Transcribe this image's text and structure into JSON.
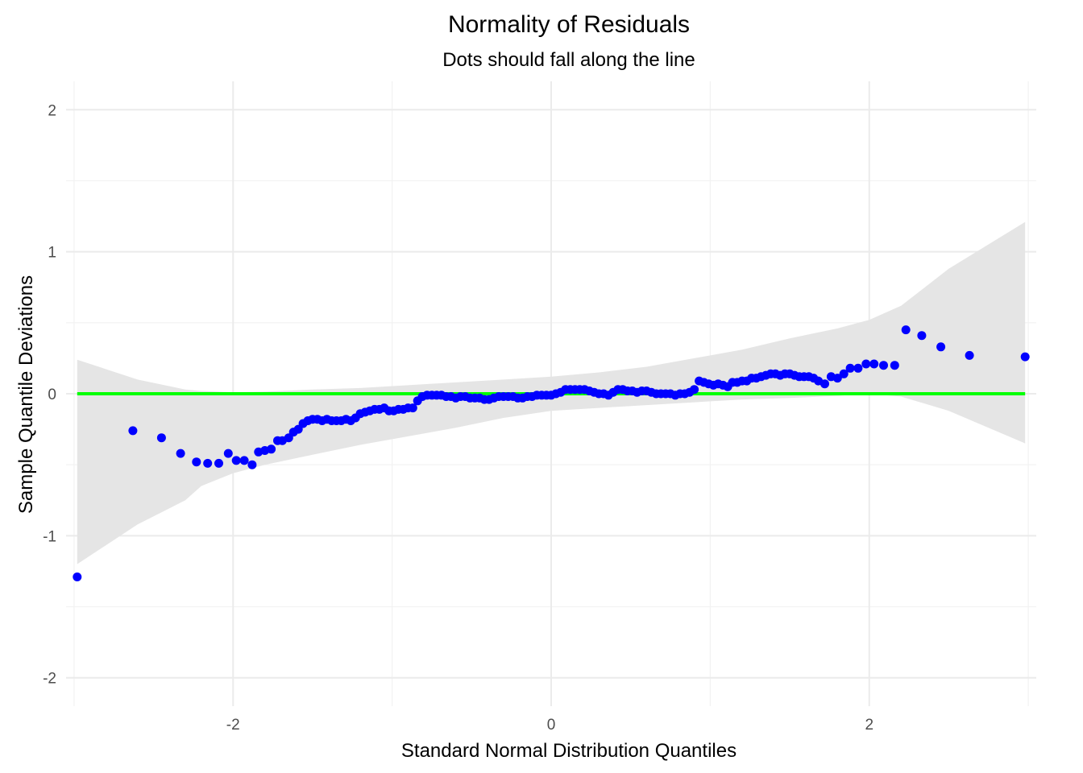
{
  "chart_data": {
    "type": "scatter",
    "title": "Normality of Residuals",
    "subtitle": "Dots should fall along the line",
    "xlabel": "Standard Normal Distribution Quantiles",
    "ylabel": "Sample Quantile Deviations",
    "xlim": [
      -3.05,
      3.05
    ],
    "ylim": [
      -2.2,
      2.2
    ],
    "x_ticks": [
      -2,
      0,
      2
    ],
    "x_tick_labels": [
      "-2",
      "0",
      "2"
    ],
    "y_ticks": [
      -2,
      -1,
      0,
      1,
      2
    ],
    "y_tick_labels": [
      "-2",
      "-1",
      "0",
      "1",
      "2"
    ],
    "x_minor": [
      -3,
      -1,
      1,
      3
    ],
    "y_minor": [
      -1.5,
      -0.5,
      0.5,
      1.5
    ],
    "grid": true,
    "colors": {
      "points": "#0000ff",
      "reference_line": "#00ff00",
      "band": "#e5e5e5"
    },
    "reference_line": {
      "y": 0,
      "x_range": [
        -2.98,
        2.98
      ]
    },
    "confidence_band": {
      "x": [
        -2.98,
        -2.6,
        -2.3,
        -2.2,
        -2.0,
        -1.8,
        -1.5,
        -1.2,
        -0.9,
        -0.6,
        -0.3,
        0.0,
        0.3,
        0.6,
        0.9,
        1.2,
        1.5,
        1.8,
        2.0,
        2.2,
        2.5,
        2.98
      ],
      "upper": [
        0.24,
        0.1,
        0.03,
        0.02,
        0.01,
        0.015,
        0.03,
        0.04,
        0.06,
        0.08,
        0.1,
        0.12,
        0.15,
        0.19,
        0.25,
        0.31,
        0.39,
        0.46,
        0.52,
        0.62,
        0.88,
        1.21
      ],
      "lower": [
        -1.2,
        -0.92,
        -0.75,
        -0.65,
        -0.56,
        -0.5,
        -0.43,
        -0.36,
        -0.3,
        -0.24,
        -0.17,
        -0.12,
        -0.1,
        -0.08,
        -0.06,
        -0.04,
        -0.03,
        -0.015,
        0.0,
        -0.02,
        -0.12,
        -0.35
      ]
    },
    "points": {
      "x": [
        -2.98,
        -2.63,
        -2.45,
        -2.33,
        -2.23,
        -2.16,
        -2.09,
        -2.03,
        -1.98,
        -1.93,
        -1.88,
        -1.84,
        -1.8,
        -1.76,
        -1.72,
        -1.69,
        -1.65,
        -1.62,
        -1.59,
        -1.56,
        -1.53,
        -1.5,
        -1.47,
        -1.44,
        -1.41,
        -1.38,
        -1.35,
        -1.32,
        -1.29,
        -1.26,
        -1.23,
        -1.2,
        -1.17,
        -1.14,
        -1.11,
        -1.08,
        -1.05,
        -1.02,
        -0.99,
        -0.96,
        -0.93,
        -0.9,
        -0.87,
        -0.84,
        -0.81,
        -0.78,
        -0.75,
        -0.72,
        -0.69,
        -0.66,
        -0.63,
        -0.6,
        -0.57,
        -0.54,
        -0.51,
        -0.48,
        -0.45,
        -0.42,
        -0.39,
        -0.36,
        -0.33,
        -0.3,
        -0.27,
        -0.24,
        -0.21,
        -0.18,
        -0.15,
        -0.12,
        -0.09,
        -0.06,
        -0.03,
        0.0,
        0.03,
        0.06,
        0.09,
        0.12,
        0.15,
        0.18,
        0.21,
        0.24,
        0.27,
        0.3,
        0.33,
        0.36,
        0.39,
        0.42,
        0.45,
        0.48,
        0.51,
        0.54,
        0.57,
        0.6,
        0.63,
        0.66,
        0.69,
        0.72,
        0.75,
        0.78,
        0.81,
        0.84,
        0.87,
        0.9,
        0.93,
        0.96,
        0.99,
        1.02,
        1.05,
        1.08,
        1.11,
        1.14,
        1.17,
        1.2,
        1.23,
        1.26,
        1.29,
        1.32,
        1.35,
        1.38,
        1.41,
        1.44,
        1.47,
        1.5,
        1.53,
        1.56,
        1.59,
        1.62,
        1.65,
        1.68,
        1.72,
        1.76,
        1.8,
        1.84,
        1.88,
        1.93,
        1.98,
        2.03,
        2.09,
        2.16,
        2.23,
        2.33,
        2.45,
        2.63,
        2.98
      ],
      "y": [
        -1.29,
        -0.26,
        -0.31,
        -0.42,
        -0.48,
        -0.49,
        -0.49,
        -0.42,
        -0.47,
        -0.47,
        -0.5,
        -0.41,
        -0.4,
        -0.39,
        -0.33,
        -0.33,
        -0.31,
        -0.27,
        -0.25,
        -0.21,
        -0.19,
        -0.18,
        -0.18,
        -0.19,
        -0.18,
        -0.19,
        -0.19,
        -0.19,
        -0.18,
        -0.19,
        -0.17,
        -0.14,
        -0.13,
        -0.12,
        -0.11,
        -0.11,
        -0.1,
        -0.12,
        -0.12,
        -0.11,
        -0.11,
        -0.1,
        -0.1,
        -0.05,
        -0.02,
        -0.01,
        -0.01,
        -0.01,
        -0.01,
        -0.02,
        -0.02,
        -0.03,
        -0.02,
        -0.02,
        -0.03,
        -0.03,
        -0.03,
        -0.04,
        -0.04,
        -0.03,
        -0.02,
        -0.02,
        -0.02,
        -0.02,
        -0.03,
        -0.03,
        -0.02,
        -0.02,
        -0.01,
        -0.01,
        -0.01,
        -0.01,
        0.0,
        0.01,
        0.03,
        0.03,
        0.03,
        0.03,
        0.03,
        0.02,
        0.01,
        0.0,
        0.0,
        -0.01,
        0.01,
        0.03,
        0.03,
        0.02,
        0.02,
        0.01,
        0.02,
        0.02,
        0.01,
        0.0,
        0.0,
        0.0,
        0.0,
        -0.01,
        0.0,
        0.0,
        0.01,
        0.03,
        0.09,
        0.08,
        0.07,
        0.06,
        0.07,
        0.06,
        0.05,
        0.08,
        0.08,
        0.09,
        0.09,
        0.11,
        0.11,
        0.12,
        0.13,
        0.14,
        0.14,
        0.13,
        0.14,
        0.14,
        0.13,
        0.12,
        0.12,
        0.12,
        0.11,
        0.09,
        0.07,
        0.12,
        0.11,
        0.14,
        0.18,
        0.18,
        0.21,
        0.21,
        0.2,
        0.2,
        0.45,
        0.41,
        0.33,
        0.27,
        0.26
      ]
    }
  }
}
